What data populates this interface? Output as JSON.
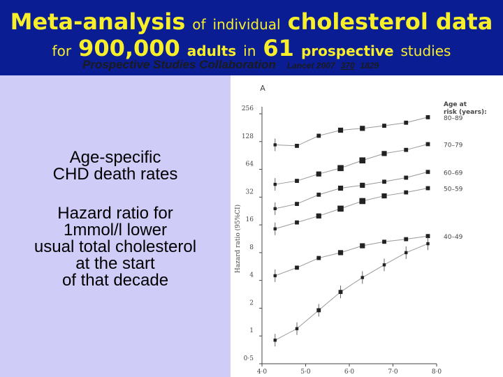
{
  "title": {
    "line1_a": "Meta-analysis",
    "line1_b": "of",
    "line1_c": "individual",
    "line1_d": "cholesterol data",
    "line2_a": "for",
    "line2_b": "900,000",
    "line2_c": "adults",
    "line2_d": "in",
    "line2_e": "61",
    "line2_f": "prospective",
    "line2_g": "studies"
  },
  "subtitle": {
    "collaboration": "Prospective Studies Collaboration",
    "journal": "Lancet 2007",
    "volume": "370",
    "pages": "1829"
  },
  "left_panel": {
    "line1": "Age-specific",
    "line2": "CHD death rates",
    "line3": "Hazard ratio for",
    "line4": "1mmol/l lower",
    "line5": "usual total cholesterol",
    "line6": "at the start",
    "line7": "of that decade"
  },
  "colors": {
    "header_bg": "#0b1d93",
    "title_yellow": "#f7ef2a",
    "panel_bg": "#cfccf8"
  },
  "chart_data": {
    "type": "line",
    "panel_label": "A",
    "ylabel": "Hazard ratio (95%CI)",
    "y_scale": "log2",
    "ylim": [
      0.5,
      256
    ],
    "yticks": [
      0.5,
      1,
      2,
      4,
      8,
      16,
      32,
      64,
      128,
      256
    ],
    "ytick_labels": [
      "0·5",
      "1",
      "2",
      "4",
      "8",
      "16",
      "32",
      "64",
      "128",
      "256"
    ],
    "xlim": [
      4.0,
      8.0
    ],
    "xticks": [
      4.0,
      5.0,
      6.0,
      7.0,
      8.0
    ],
    "xtick_labels": [
      "4·0",
      "5·0",
      "6·0",
      "7·0",
      "8·0"
    ],
    "legend_title": "Age at risk (years):",
    "series": [
      {
        "name": "80–89",
        "x": [
          4.3,
          4.8,
          5.3,
          5.8,
          6.3,
          6.8,
          7.3,
          7.8
        ],
        "y": [
          118,
          115,
          148,
          170,
          178,
          190,
          205,
          235
        ],
        "sizes": [
          1,
          2,
          2,
          3,
          3,
          2,
          2,
          2
        ]
      },
      {
        "name": "70–79",
        "x": [
          4.3,
          4.8,
          5.3,
          5.8,
          6.3,
          6.8,
          7.3,
          7.8
        ],
        "y": [
          44,
          48,
          57,
          66,
          80,
          95,
          104,
          120
        ],
        "sizes": [
          1,
          2,
          3,
          4,
          4,
          3,
          2,
          2
        ]
      },
      {
        "name": "60–69",
        "x": [
          4.3,
          4.8,
          5.3,
          5.8,
          6.3,
          6.8,
          7.3,
          7.8
        ],
        "y": [
          24,
          27,
          34,
          40,
          43,
          47,
          52,
          60
        ],
        "sizes": [
          1,
          2,
          2,
          3,
          3,
          2,
          2,
          2
        ]
      },
      {
        "name": "50–59",
        "x": [
          4.3,
          4.8,
          5.3,
          5.8,
          6.3,
          6.8,
          7.3,
          7.8
        ],
        "y": [
          14.5,
          17,
          20,
          24,
          29,
          33,
          36,
          40
        ],
        "sizes": [
          1,
          2,
          3,
          4,
          4,
          3,
          2,
          2
        ]
      },
      {
        "name": "40–49",
        "x": [
          4.3,
          4.8,
          5.3,
          5.8,
          6.3,
          6.8,
          7.3,
          7.8
        ],
        "y": [
          4.5,
          5.5,
          7.0,
          8.0,
          9.5,
          10.5,
          11.2,
          12.1
        ],
        "sizes": [
          1,
          2,
          2,
          3,
          3,
          2,
          2,
          2
        ]
      },
      {
        "name": "",
        "x": [
          4.3,
          4.8,
          5.3,
          5.8,
          6.3,
          6.8,
          7.3,
          7.8
        ],
        "y": [
          0.9,
          1.2,
          1.9,
          3.0,
          4.3,
          5.9,
          8.0,
          10.0
        ],
        "sizes": [
          1,
          1,
          2,
          2,
          1,
          1,
          1,
          1
        ]
      }
    ]
  }
}
